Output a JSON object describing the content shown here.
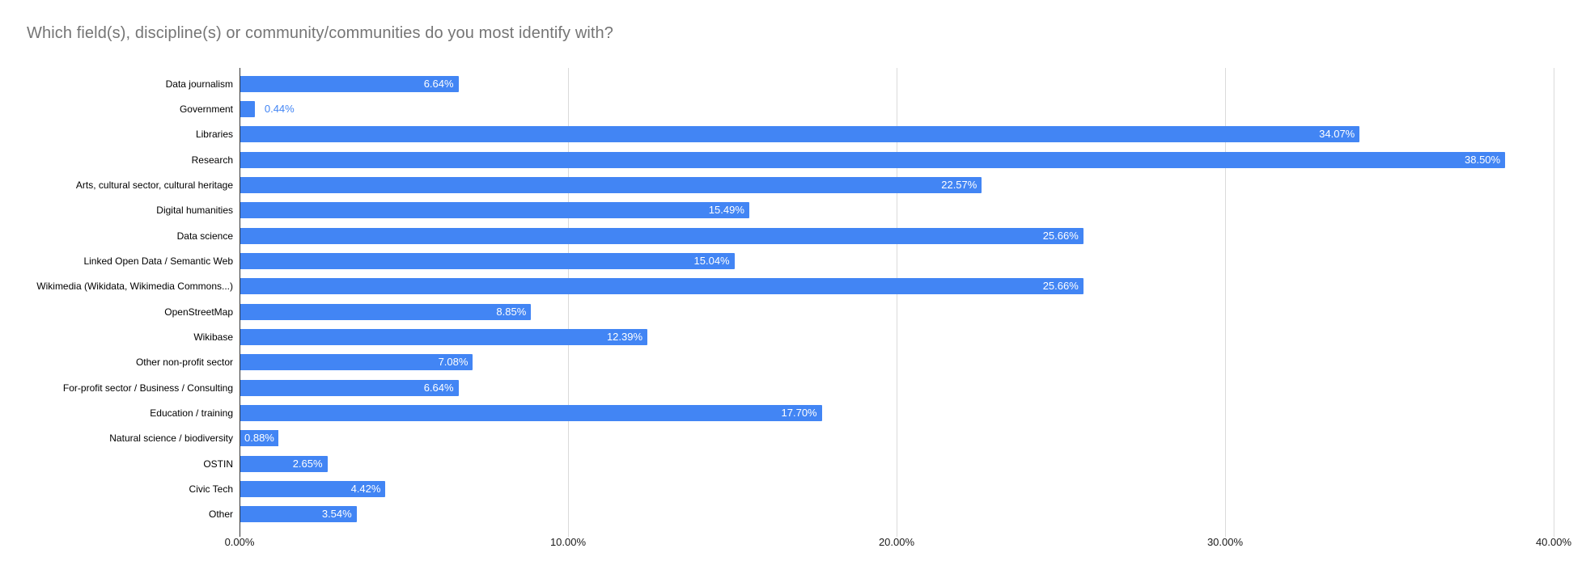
{
  "title": "Which field(s), discipline(s) or community/communities do you most identify with?",
  "chart_data": {
    "type": "bar",
    "orientation": "horizontal",
    "title": "Which field(s), discipline(s) or community/communities do you most identify with?",
    "categories": [
      "Data journalism",
      "Government",
      "Libraries",
      "Research",
      "Arts, cultural sector, cultural heritage",
      "Digital humanities",
      "Data science",
      "Linked Open Data / Semantic Web",
      "Wikimedia (Wikidata, Wikimedia Commons...)",
      "OpenStreetMap",
      "Wikibase",
      "Other non-profit sector",
      "For-profit sector / Business / Consulting",
      "Education / training",
      "Natural science / biodiversity",
      "OSTIN",
      "Civic Tech",
      "Other"
    ],
    "values": [
      6.64,
      0.44,
      34.07,
      38.5,
      22.57,
      15.49,
      25.66,
      15.04,
      25.66,
      8.85,
      12.39,
      7.08,
      6.64,
      17.7,
      0.88,
      2.65,
      4.42,
      3.54
    ],
    "value_labels": [
      "6.64%",
      "0.44%",
      "34.07%",
      "38.50%",
      "22.57%",
      "15.49%",
      "25.66%",
      "15.04%",
      "25.66%",
      "8.85%",
      "12.39%",
      "7.08%",
      "6.64%",
      "17.70%",
      "0.88%",
      "2.65%",
      "4.42%",
      "3.54%"
    ],
    "label_placement": [
      "inside",
      "outside",
      "inside",
      "inside",
      "inside",
      "inside",
      "inside",
      "inside",
      "inside",
      "inside",
      "inside",
      "inside",
      "inside",
      "inside",
      "overflow",
      "inside",
      "inside",
      "inside"
    ],
    "x_tick_labels": [
      "0.00%",
      "10.00%",
      "20.00%",
      "30.00%",
      "40.00%"
    ],
    "xlabel": "",
    "ylabel": "",
    "xlim": [
      0,
      40
    ],
    "grid": true,
    "legend": "none",
    "colors": {
      "bar": "#4285f4",
      "annotation_inside": "#ffffff",
      "annotation_outside": "#4285f4",
      "gridline": "#dadada",
      "axis_line": "#333333",
      "title": "#757575",
      "axis_label": "#1a1a1a",
      "category_label": "#000000",
      "background": "#ffffff"
    }
  }
}
